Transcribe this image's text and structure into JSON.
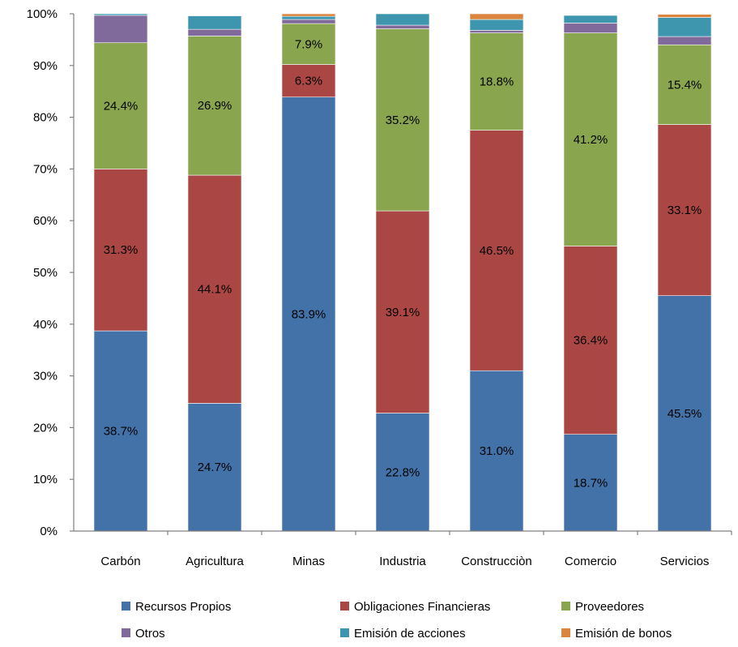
{
  "chart_data": {
    "type": "bar",
    "stacked": true,
    "title": "",
    "xlabel": "",
    "ylabel": "",
    "ylim": [
      0,
      100
    ],
    "y_ticks": [
      "0%",
      "10%",
      "20%",
      "30%",
      "40%",
      "50%",
      "60%",
      "70%",
      "80%",
      "90%",
      "100%"
    ],
    "categories": [
      "Carbón",
      "Agricultura",
      "Minas",
      "Industria",
      "Construcciòn",
      "Comercio",
      "Servicios"
    ],
    "series": [
      {
        "name": "Recursos Propios",
        "color": "#4372A9",
        "values": [
          38.7,
          24.7,
          83.9,
          22.8,
          31.0,
          18.7,
          45.5
        ],
        "labels": [
          "38.7%",
          "24.7%",
          "83.9%",
          "22.8%",
          "31.0%",
          "18.7%",
          "45.5%"
        ]
      },
      {
        "name": "Obligaciones Financieras",
        "color": "#AA4643",
        "values": [
          31.3,
          44.1,
          6.3,
          39.1,
          46.5,
          36.4,
          33.1
        ],
        "labels": [
          "31.3%",
          "44.1%",
          "6.3%",
          "39.1%",
          "46.5%",
          "36.4%",
          "33.1%"
        ]
      },
      {
        "name": "Proveedores",
        "color": "#89A54E",
        "values": [
          24.4,
          26.9,
          7.9,
          35.2,
          18.8,
          41.2,
          15.4
        ],
        "labels": [
          "24.4%",
          "26.9%",
          "7.9%",
          "35.2%",
          "18.8%",
          "41.2%",
          "15.4%"
        ]
      },
      {
        "name": "Otros",
        "color": "#80699B",
        "values": [
          5.3,
          1.3,
          0.8,
          0.7,
          0.5,
          1.9,
          1.6
        ],
        "labels": [
          "",
          "",
          "",
          "",
          "",
          "",
          ""
        ]
      },
      {
        "name": "Emisión de acciones",
        "color": "#3D96AE",
        "values": [
          0.3,
          2.6,
          0.6,
          2.2,
          2.1,
          1.5,
          3.7
        ],
        "labels": [
          "",
          "",
          "",
          "",
          "",
          "",
          ""
        ]
      },
      {
        "name": "Emisión de bonos",
        "color": "#DB843D",
        "values": [
          0.0,
          0.0,
          0.5,
          0.0,
          1.1,
          0.1,
          0.6
        ],
        "labels": [
          "",
          "",
          "",
          "",
          "",
          "",
          ""
        ]
      }
    ],
    "legend": {
      "position": "bottom",
      "columns": 3
    },
    "grid": false
  }
}
